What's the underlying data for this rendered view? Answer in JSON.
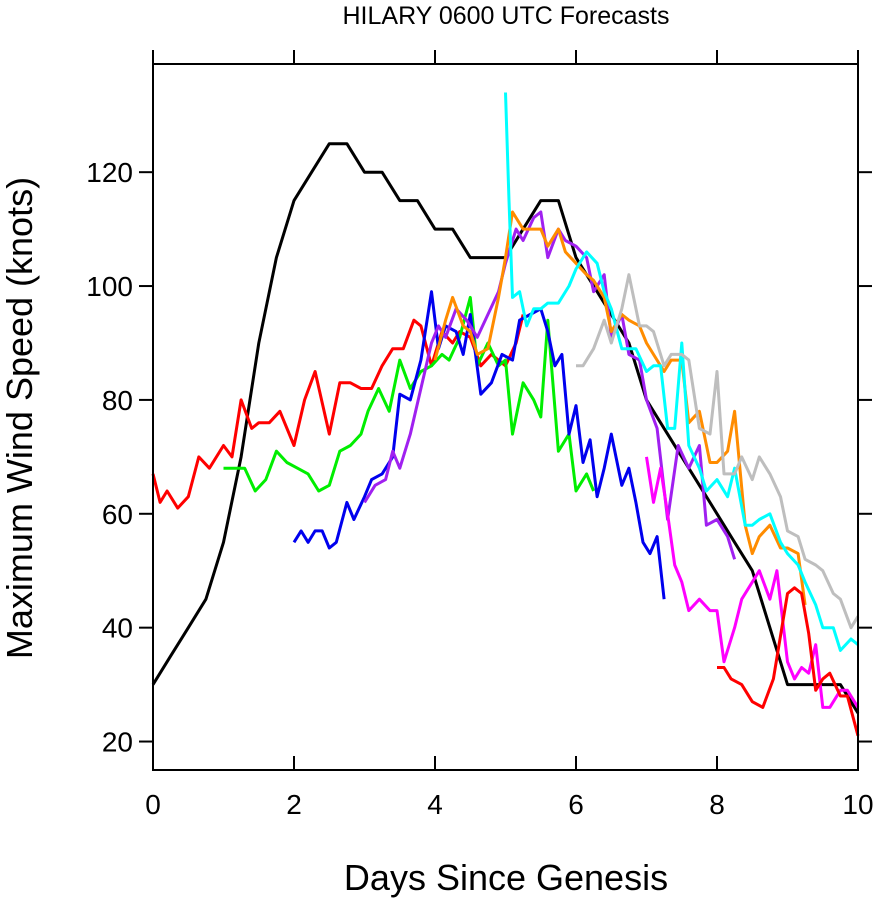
{
  "chart_data": {
    "type": "line",
    "title": "HILARY 0600 UTC Forecasts",
    "xlabel": "Days Since Genesis",
    "ylabel": "Maximum Wind Speed (knots)",
    "xlim": [
      0,
      10
    ],
    "ylim": [
      15,
      139
    ],
    "xticks": [
      0,
      2,
      4,
      6,
      8,
      10
    ],
    "yticks": [
      20,
      40,
      60,
      80,
      100,
      120
    ],
    "grid": false,
    "legend": "none",
    "series": [
      {
        "color": "#000000",
        "x": [
          0,
          0.25,
          0.5,
          0.75,
          1.0,
          1.25,
          1.5,
          1.75,
          2.0,
          2.25,
          2.5,
          2.75,
          3.0,
          3.25,
          3.5,
          3.75,
          4.0,
          4.25,
          4.5,
          4.75,
          5.0,
          5.25,
          5.5,
          5.75,
          6.0,
          6.25,
          6.5,
          6.75,
          7.0,
          7.25,
          7.5,
          7.75,
          8.0,
          8.25,
          8.5,
          8.75,
          9.0,
          9.25,
          9.5,
          9.75,
          10.0
        ],
        "y": [
          30,
          35,
          40,
          45,
          55,
          70,
          90,
          105,
          115,
          120,
          125,
          125,
          120,
          120,
          115,
          115,
          110,
          110,
          105,
          105,
          105,
          110,
          115,
          115,
          105,
          100,
          95,
          90,
          80,
          75,
          70,
          65,
          60,
          55,
          50,
          40,
          30,
          30,
          30,
          30,
          25
        ]
      },
      {
        "color": "#ff0000",
        "x": [
          0,
          0.1,
          0.2,
          0.35,
          0.5,
          0.65,
          0.8,
          1.0,
          1.12,
          1.25,
          1.4,
          1.5,
          1.65,
          1.8,
          2.0,
          2.15,
          2.3,
          2.5,
          2.65,
          2.8,
          2.95,
          3.1,
          3.25,
          3.4,
          3.55,
          3.7,
          3.8,
          3.95,
          4.1,
          4.25,
          4.35,
          4.5,
          4.65,
          4.8,
          5.0,
          5.15,
          5.25
        ],
        "y": [
          67,
          62,
          64,
          61,
          63,
          70,
          68,
          72,
          70,
          80,
          75,
          76,
          76,
          78,
          72,
          80,
          85,
          74,
          83,
          83,
          82,
          82,
          86,
          89,
          89,
          94,
          93,
          86,
          92,
          90,
          92,
          91,
          86,
          88,
          86,
          90,
          95
        ]
      },
      {
        "color": "#00ee00",
        "x": [
          1.0,
          1.15,
          1.3,
          1.45,
          1.6,
          1.75,
          1.9,
          2.05,
          2.2,
          2.35,
          2.5,
          2.65,
          2.8,
          2.95,
          3.05,
          3.2,
          3.35,
          3.5,
          3.65,
          3.8,
          3.95,
          4.1,
          4.2,
          4.35,
          4.5,
          4.6,
          4.75,
          4.9,
          5.0,
          5.1,
          5.25,
          5.4,
          5.5,
          5.6,
          5.75,
          5.9,
          6.0,
          6.15,
          6.25
        ],
        "y": [
          68,
          68,
          68,
          64,
          66,
          71,
          69,
          68,
          67,
          64,
          65,
          71,
          72,
          74,
          78,
          82,
          78,
          87,
          82,
          85,
          86,
          88,
          87,
          91,
          98,
          86,
          90,
          86,
          87,
          74,
          83,
          80,
          77,
          94,
          71,
          74,
          64,
          67,
          64
        ]
      },
      {
        "color": "#0000ee",
        "x": [
          2.0,
          2.1,
          2.2,
          2.3,
          2.4,
          2.5,
          2.6,
          2.75,
          2.85,
          3.0,
          3.1,
          3.25,
          3.4,
          3.5,
          3.65,
          3.8,
          3.95,
          4.05,
          4.15,
          4.3,
          4.4,
          4.5,
          4.65,
          4.8,
          4.95,
          5.1,
          5.2,
          5.35,
          5.5,
          5.6,
          5.7,
          5.8,
          5.9,
          6.0,
          6.1,
          6.2,
          6.3,
          6.4,
          6.5,
          6.65,
          6.75,
          6.85,
          6.95,
          7.05,
          7.15,
          7.25
        ],
        "y": [
          55,
          57,
          55,
          57,
          57,
          54,
          55,
          62,
          59,
          63,
          66,
          67,
          70,
          81,
          80,
          87,
          99,
          89,
          93,
          92,
          88,
          95,
          81,
          83,
          88,
          87,
          94,
          95,
          96,
          92,
          86,
          88,
          74,
          79,
          69,
          73,
          63,
          68,
          74,
          65,
          68,
          62,
          55,
          53,
          56,
          45
        ]
      },
      {
        "color": "#a020f0",
        "x": [
          3.0,
          3.15,
          3.3,
          3.4,
          3.5,
          3.65,
          3.8,
          3.95,
          4.05,
          4.15,
          4.3,
          4.45,
          4.6,
          4.75,
          4.9,
          5.0,
          5.15,
          5.25,
          5.4,
          5.5,
          5.6,
          5.75,
          5.85,
          6.0,
          6.15,
          6.25,
          6.4,
          6.5,
          6.65,
          6.75,
          6.9,
          7.0,
          7.15,
          7.3,
          7.45,
          7.6,
          7.75,
          7.85,
          8.0,
          8.15,
          8.25
        ],
        "y": [
          62,
          65,
          66,
          71,
          68,
          74,
          82,
          90,
          93,
          91,
          96,
          94,
          91,
          95,
          99,
          104,
          110,
          108,
          112,
          113,
          105,
          110,
          108,
          107,
          105,
          99,
          102,
          91,
          95,
          88,
          87,
          80,
          75,
          59,
          72,
          68,
          72,
          58,
          59,
          56,
          52
        ]
      },
      {
        "color": "#ff8c00",
        "x": [
          4.0,
          4.15,
          4.25,
          4.4,
          4.5,
          4.6,
          4.75,
          4.9,
          5.0,
          5.1,
          5.25,
          5.4,
          5.5,
          5.6,
          5.75,
          5.85,
          6.0,
          6.15,
          6.25,
          6.4,
          6.5,
          6.65,
          6.75,
          6.9,
          7.0,
          7.1,
          7.25,
          7.35,
          7.5,
          7.6,
          7.75,
          7.9,
          8.0,
          8.15,
          8.25,
          8.4,
          8.5,
          8.6,
          8.75,
          8.9,
          9.0,
          9.15,
          9.25
        ],
        "y": [
          87,
          94,
          98,
          93,
          92,
          88,
          89,
          98,
          105,
          113,
          110,
          110,
          110,
          107,
          110,
          106,
          104,
          102,
          101,
          98,
          92,
          95,
          94,
          93,
          90,
          88,
          85,
          87,
          87,
          76,
          78,
          69,
          69,
          71,
          78,
          58,
          53,
          56,
          58,
          54,
          54,
          53,
          44
        ]
      },
      {
        "color": "#00ffff",
        "x": [
          5.0,
          5.05,
          5.1,
          5.2,
          5.3,
          5.4,
          5.5,
          5.6,
          5.75,
          5.9,
          6.0,
          6.15,
          6.3,
          6.4,
          6.5,
          6.65,
          6.75,
          6.85,
          7.0,
          7.1,
          7.2,
          7.3,
          7.4,
          7.5,
          7.6,
          7.75,
          7.85,
          8.0,
          8.15,
          8.25,
          8.4,
          8.5,
          8.6,
          8.75,
          8.9,
          9.0,
          9.15,
          9.25,
          9.4,
          9.5,
          9.65,
          9.75,
          9.9,
          10.0
        ],
        "y": [
          134,
          115,
          98,
          99,
          93,
          96,
          96,
          97,
          97,
          100,
          103,
          106,
          104,
          99,
          96,
          89,
          89,
          89,
          85,
          86,
          86,
          75,
          75,
          90,
          72,
          68,
          64,
          66,
          63,
          68,
          58,
          58,
          59,
          60,
          55,
          53,
          51,
          48,
          44,
          40,
          40,
          36,
          38,
          37
        ]
      },
      {
        "color": "#bebebe",
        "x": [
          6.0,
          6.1,
          6.25,
          6.4,
          6.5,
          6.65,
          6.75,
          6.9,
          7.0,
          7.1,
          7.25,
          7.35,
          7.5,
          7.6,
          7.75,
          7.9,
          8.0,
          8.1,
          8.25,
          8.35,
          8.5,
          8.6,
          8.75,
          8.9,
          9.0,
          9.15,
          9.25,
          9.4,
          9.5,
          9.65,
          9.75,
          9.9,
          10.0
        ],
        "y": [
          86,
          86,
          89,
          94,
          90,
          96,
          102,
          93,
          93,
          92,
          86,
          88,
          88,
          87,
          75,
          74,
          85,
          67,
          67,
          70,
          66,
          70,
          67,
          63,
          57,
          56,
          52,
          51,
          50,
          46,
          45,
          40,
          42
        ]
      },
      {
        "color": "#ff00ff",
        "x": [
          7.0,
          7.1,
          7.2,
          7.3,
          7.4,
          7.5,
          7.6,
          7.75,
          7.9,
          8.0,
          8.1,
          8.25,
          8.35,
          8.5,
          8.6,
          8.75,
          8.85,
          9.0,
          9.1,
          9.2,
          9.3,
          9.4,
          9.5,
          9.6,
          9.75,
          9.85,
          10.0
        ],
        "y": [
          70,
          62,
          68,
          60,
          51,
          48,
          43,
          45,
          43,
          43,
          34,
          40,
          45,
          48,
          50,
          45,
          50,
          34,
          31,
          33,
          32,
          37,
          26,
          26,
          29,
          29,
          26
        ]
      },
      {
        "color": "#ff0000",
        "x": [
          8.0,
          8.1,
          8.2,
          8.35,
          8.5,
          8.65,
          8.8,
          9.0,
          9.1,
          9.2,
          9.3,
          9.4,
          9.5,
          9.6,
          9.75,
          9.85,
          10.0
        ],
        "y": [
          33,
          33,
          31,
          30,
          27,
          26,
          31,
          46,
          47,
          46,
          39,
          29,
          31,
          32,
          28,
          28,
          21
        ]
      }
    ]
  }
}
